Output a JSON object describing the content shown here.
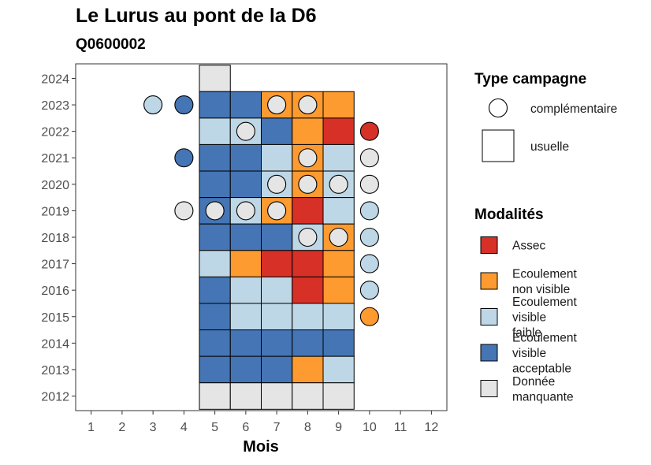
{
  "chart_data": {
    "type": "heatmap",
    "title": "Le Lurus au pont de la D6",
    "subtitle": "Q0600002",
    "xlabel": "Mois",
    "ylabel": "",
    "x_ticks": [
      1,
      2,
      3,
      4,
      5,
      6,
      7,
      8,
      9,
      10,
      11,
      12
    ],
    "y_ticks": [
      2012,
      2013,
      2014,
      2015,
      2016,
      2017,
      2018,
      2019,
      2020,
      2021,
      2022,
      2023,
      2024
    ],
    "xlim": [
      0.5,
      12.5
    ],
    "ylim": [
      2011.45,
      2024.55
    ],
    "grid": false,
    "legend_position": "right",
    "legend_campaign": {
      "title": "Type campagne",
      "entries": [
        {
          "key": "complementaire",
          "label": "complémentaire",
          "shape": "circle"
        },
        {
          "key": "usuelle",
          "label": "usuelle",
          "shape": "square"
        }
      ]
    },
    "legend_modalites": {
      "title": "Modalités",
      "entries": [
        {
          "key": "A",
          "lines": [
            "Assec"
          ],
          "color": "#d73027"
        },
        {
          "key": "N",
          "lines": [
            "Ecoulement",
            "non visible"
          ],
          "color": "#fd9a30"
        },
        {
          "key": "F",
          "lines": [
            "Ecoulement",
            "visible",
            "faible"
          ],
          "color": "#bdd7e7"
        },
        {
          "key": "V",
          "lines": [
            "Ecoulement",
            "visible",
            "acceptable"
          ],
          "color": "#4575b4"
        },
        {
          "key": "M",
          "lines": [
            "Donnée",
            "manquante"
          ],
          "color": "#e5e5e5"
        }
      ]
    },
    "usuelle": [
      {
        "year": 2024,
        "month": 5,
        "mod": "M"
      },
      {
        "year": 2023,
        "month": 5,
        "mod": "V"
      },
      {
        "year": 2023,
        "month": 6,
        "mod": "V"
      },
      {
        "year": 2023,
        "month": 7,
        "mod": "N"
      },
      {
        "year": 2023,
        "month": 8,
        "mod": "N"
      },
      {
        "year": 2023,
        "month": 9,
        "mod": "N"
      },
      {
        "year": 2022,
        "month": 5,
        "mod": "F"
      },
      {
        "year": 2022,
        "month": 6,
        "mod": "F"
      },
      {
        "year": 2022,
        "month": 7,
        "mod": "V"
      },
      {
        "year": 2022,
        "month": 8,
        "mod": "N"
      },
      {
        "year": 2022,
        "month": 9,
        "mod": "A"
      },
      {
        "year": 2021,
        "month": 5,
        "mod": "V"
      },
      {
        "year": 2021,
        "month": 6,
        "mod": "V"
      },
      {
        "year": 2021,
        "month": 7,
        "mod": "F"
      },
      {
        "year": 2021,
        "month": 8,
        "mod": "N"
      },
      {
        "year": 2021,
        "month": 9,
        "mod": "F"
      },
      {
        "year": 2020,
        "month": 5,
        "mod": "V"
      },
      {
        "year": 2020,
        "month": 6,
        "mod": "V"
      },
      {
        "year": 2020,
        "month": 7,
        "mod": "F"
      },
      {
        "year": 2020,
        "month": 8,
        "mod": "N"
      },
      {
        "year": 2020,
        "month": 9,
        "mod": "F"
      },
      {
        "year": 2019,
        "month": 5,
        "mod": "V"
      },
      {
        "year": 2019,
        "month": 6,
        "mod": "F"
      },
      {
        "year": 2019,
        "month": 7,
        "mod": "N"
      },
      {
        "year": 2019,
        "month": 8,
        "mod": "A"
      },
      {
        "year": 2019,
        "month": 9,
        "mod": "F"
      },
      {
        "year": 2018,
        "month": 5,
        "mod": "V"
      },
      {
        "year": 2018,
        "month": 6,
        "mod": "V"
      },
      {
        "year": 2018,
        "month": 7,
        "mod": "V"
      },
      {
        "year": 2018,
        "month": 8,
        "mod": "F"
      },
      {
        "year": 2018,
        "month": 9,
        "mod": "N"
      },
      {
        "year": 2017,
        "month": 5,
        "mod": "F"
      },
      {
        "year": 2017,
        "month": 6,
        "mod": "N"
      },
      {
        "year": 2017,
        "month": 7,
        "mod": "A"
      },
      {
        "year": 2017,
        "month": 8,
        "mod": "A"
      },
      {
        "year": 2017,
        "month": 9,
        "mod": "N"
      },
      {
        "year": 2016,
        "month": 5,
        "mod": "V"
      },
      {
        "year": 2016,
        "month": 6,
        "mod": "F"
      },
      {
        "year": 2016,
        "month": 7,
        "mod": "F"
      },
      {
        "year": 2016,
        "month": 8,
        "mod": "A"
      },
      {
        "year": 2016,
        "month": 9,
        "mod": "N"
      },
      {
        "year": 2015,
        "month": 5,
        "mod": "V"
      },
      {
        "year": 2015,
        "month": 6,
        "mod": "F"
      },
      {
        "year": 2015,
        "month": 7,
        "mod": "F"
      },
      {
        "year": 2015,
        "month": 8,
        "mod": "F"
      },
      {
        "year": 2015,
        "month": 9,
        "mod": "F"
      },
      {
        "year": 2014,
        "month": 5,
        "mod": "V"
      },
      {
        "year": 2014,
        "month": 6,
        "mod": "V"
      },
      {
        "year": 2014,
        "month": 7,
        "mod": "V"
      },
      {
        "year": 2014,
        "month": 8,
        "mod": "V"
      },
      {
        "year": 2014,
        "month": 9,
        "mod": "V"
      },
      {
        "year": 2013,
        "month": 5,
        "mod": "V"
      },
      {
        "year": 2013,
        "month": 6,
        "mod": "V"
      },
      {
        "year": 2013,
        "month": 7,
        "mod": "V"
      },
      {
        "year": 2013,
        "month": 8,
        "mod": "N"
      },
      {
        "year": 2013,
        "month": 9,
        "mod": "F"
      },
      {
        "year": 2012,
        "month": 5,
        "mod": "M"
      },
      {
        "year": 2012,
        "month": 6,
        "mod": "M"
      },
      {
        "year": 2012,
        "month": 7,
        "mod": "M"
      },
      {
        "year": 2012,
        "month": 8,
        "mod": "M"
      },
      {
        "year": 2012,
        "month": 9,
        "mod": "M"
      }
    ],
    "complementaire": [
      {
        "year": 2023,
        "month": 3,
        "mod": "F"
      },
      {
        "year": 2023,
        "month": 4,
        "mod": "V"
      },
      {
        "year": 2023,
        "month": 7,
        "mod": "M"
      },
      {
        "year": 2023,
        "month": 8,
        "mod": "M"
      },
      {
        "year": 2022,
        "month": 6,
        "mod": "M"
      },
      {
        "year": 2022,
        "month": 10,
        "mod": "A"
      },
      {
        "year": 2021,
        "month": 4,
        "mod": "V"
      },
      {
        "year": 2021,
        "month": 8,
        "mod": "M"
      },
      {
        "year": 2021,
        "month": 10,
        "mod": "M"
      },
      {
        "year": 2020,
        "month": 7,
        "mod": "M"
      },
      {
        "year": 2020,
        "month": 8,
        "mod": "M"
      },
      {
        "year": 2020,
        "month": 9,
        "mod": "M"
      },
      {
        "year": 2020,
        "month": 10,
        "mod": "M"
      },
      {
        "year": 2019,
        "month": 4,
        "mod": "M"
      },
      {
        "year": 2019,
        "month": 5,
        "mod": "M"
      },
      {
        "year": 2019,
        "month": 6,
        "mod": "M"
      },
      {
        "year": 2019,
        "month": 7,
        "mod": "M"
      },
      {
        "year": 2019,
        "month": 10,
        "mod": "F"
      },
      {
        "year": 2018,
        "month": 8,
        "mod": "M"
      },
      {
        "year": 2018,
        "month": 9,
        "mod": "M"
      },
      {
        "year": 2018,
        "month": 10,
        "mod": "F"
      },
      {
        "year": 2017,
        "month": 10,
        "mod": "F"
      },
      {
        "year": 2016,
        "month": 10,
        "mod": "F"
      },
      {
        "year": 2015,
        "month": 10,
        "mod": "N"
      }
    ]
  }
}
